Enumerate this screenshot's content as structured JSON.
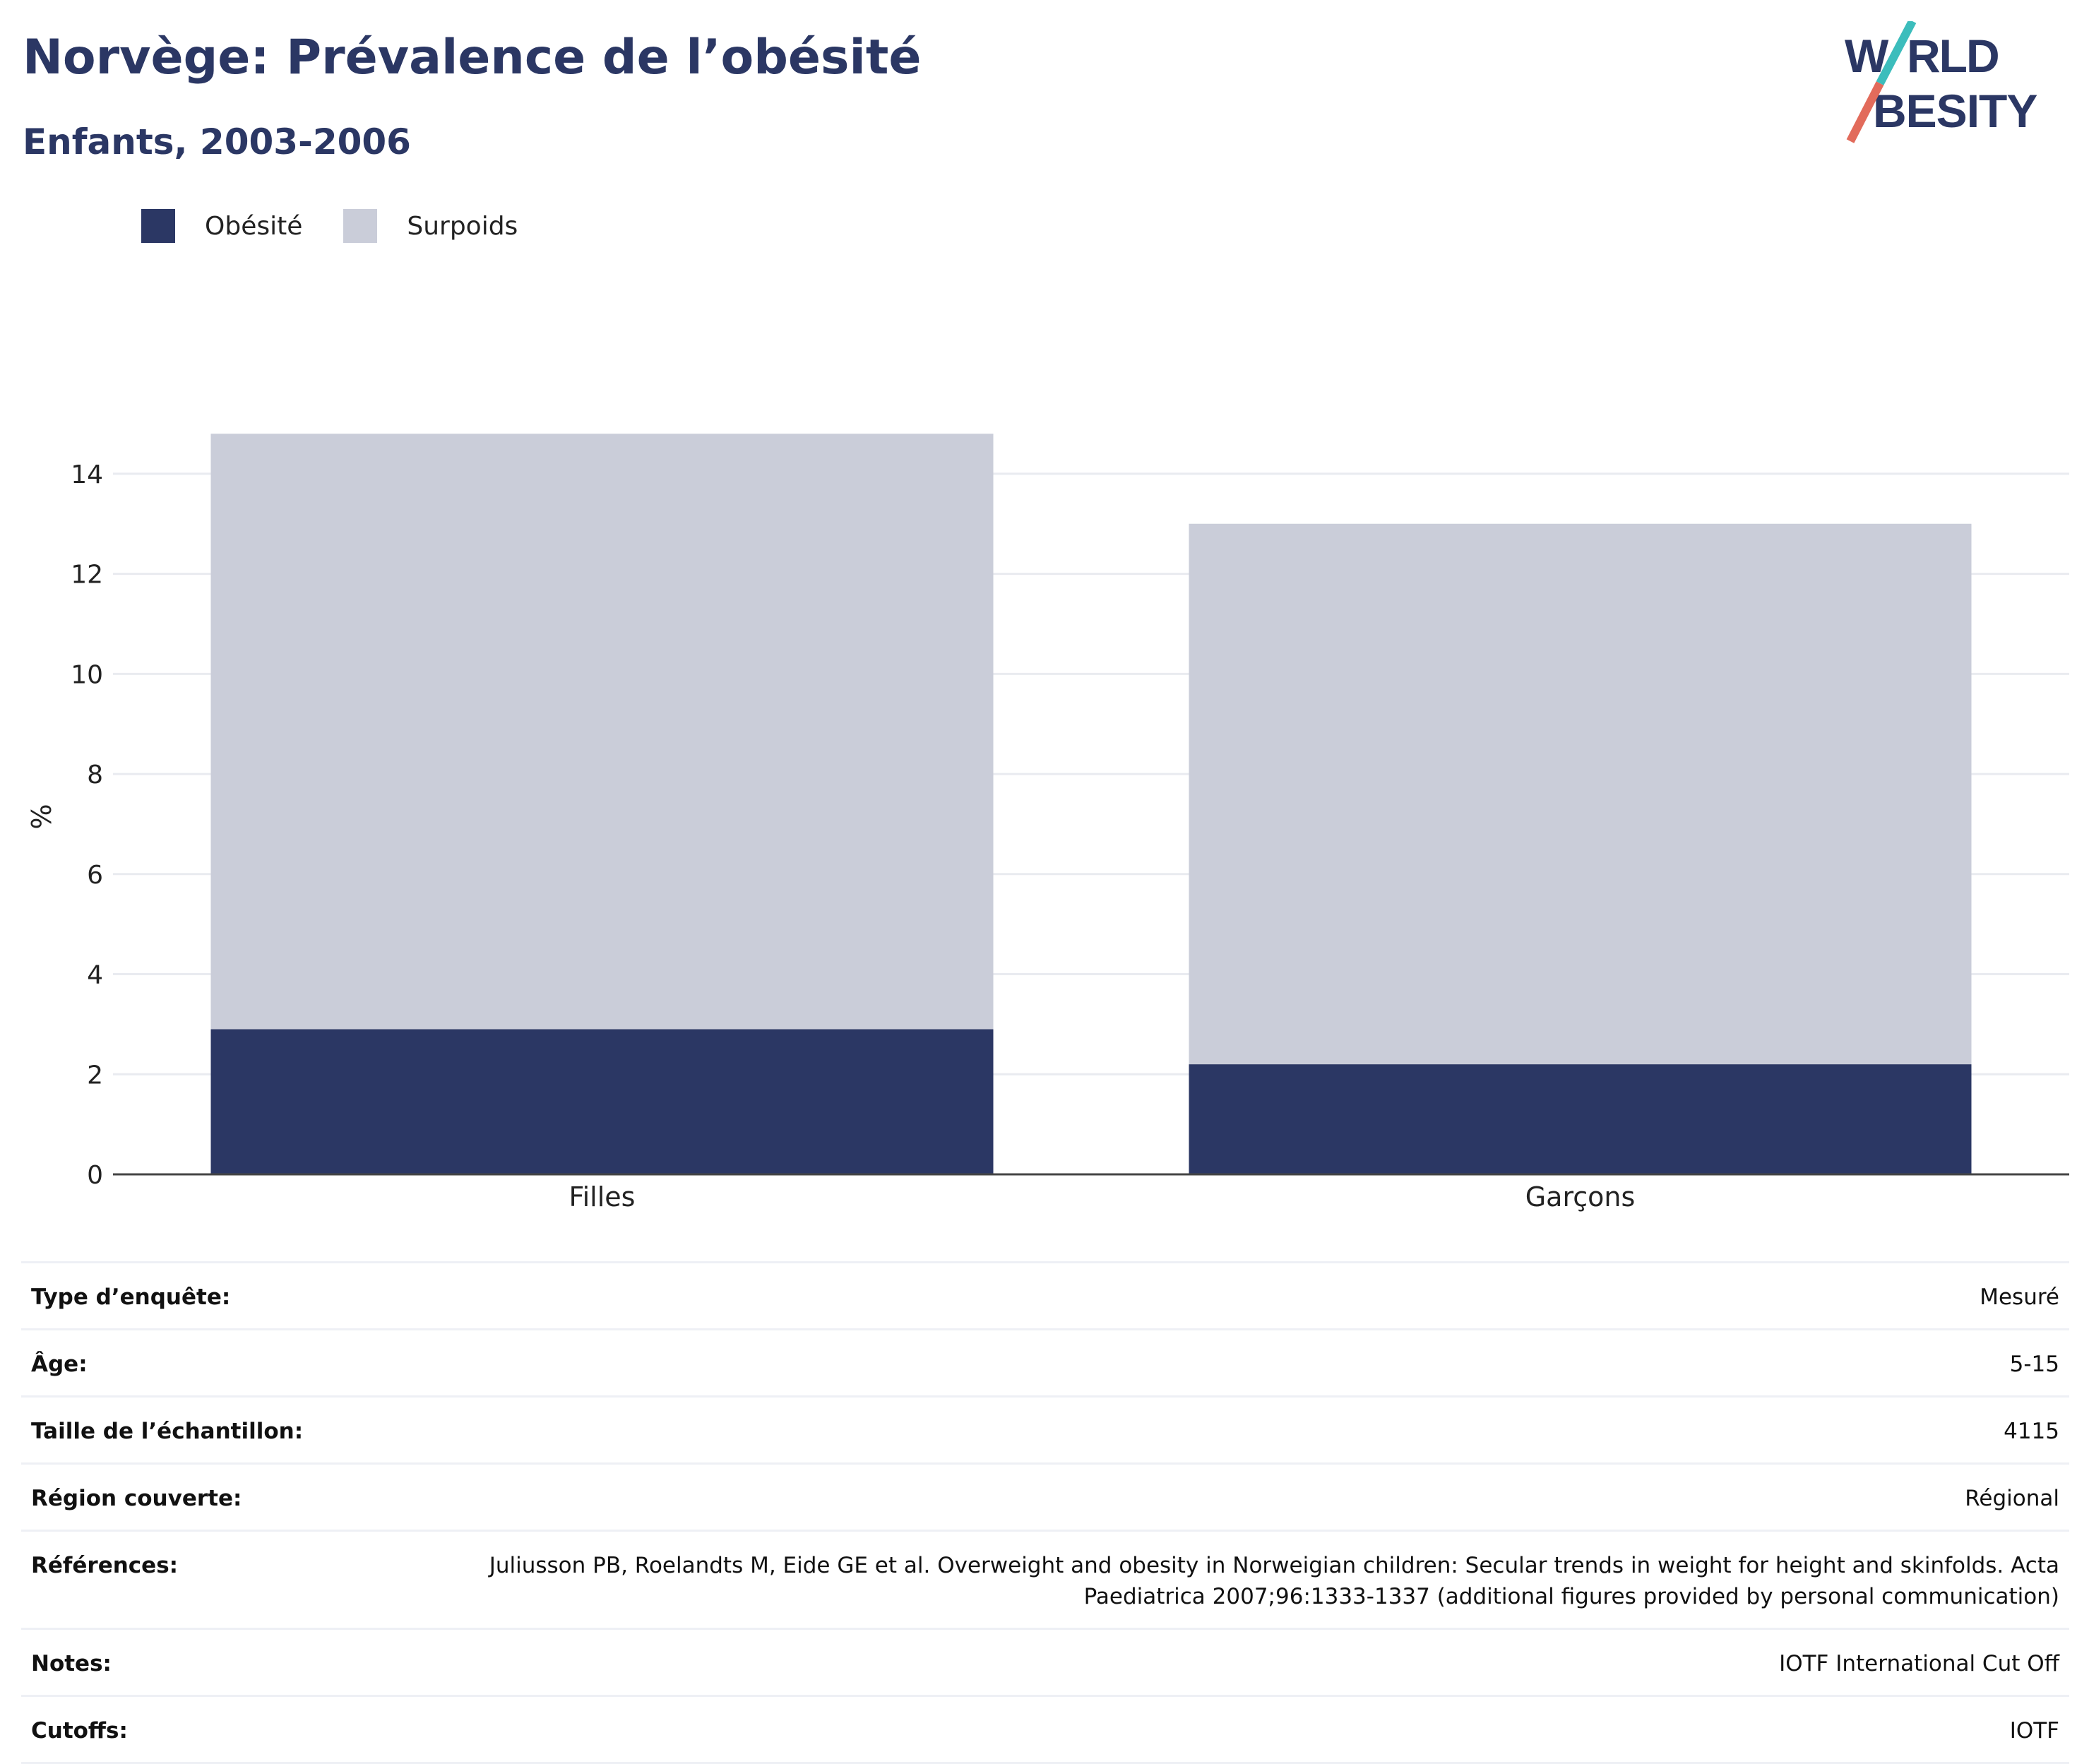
{
  "header": {
    "title": "Norvège: Prévalence de l’obésité",
    "subtitle": "Enfants, 2003-2006"
  },
  "logo": {
    "line1": "WORLD",
    "line2": "OBESITY"
  },
  "colors": {
    "obesity": "#2b3764",
    "overweight": "#cacdd9",
    "title": "#2b3764",
    "logo_teal": "#3cbdbc",
    "logo_coral": "#e26b5b"
  },
  "chart_data": {
    "type": "bar",
    "stacked": true,
    "categories": [
      "Filles",
      "Garçons"
    ],
    "series": [
      {
        "name": "Obésité",
        "values": [
          2.9,
          2.2
        ]
      },
      {
        "name": "Surpoids",
        "values": [
          11.9,
          10.8
        ]
      }
    ],
    "ylabel": "%",
    "ylim": [
      0,
      15
    ],
    "yticks": [
      0,
      2,
      4,
      6,
      8,
      10,
      12,
      14
    ],
    "grid": true,
    "legend": "top-left"
  },
  "info": [
    {
      "key": "Type d’enquête:",
      "value": "Mesuré"
    },
    {
      "key": "Âge:",
      "value": "5-15"
    },
    {
      "key": "Taille de l’échantillon:",
      "value": "4115"
    },
    {
      "key": "Région couverte:",
      "value": "Régional"
    },
    {
      "key": "Références:",
      "value": "Juliusson PB, Roelandts M, Eide GE et al. Overweight and obesity in Norweigian children: Secular trends in weight for height and skinfolds. Acta Paediatrica 2007;96:1333-1337 (additional figures provided by personal communication)"
    },
    {
      "key": "Notes:",
      "value": "IOTF International Cut Off"
    },
    {
      "key": "Cutoffs:",
      "value": "IOTF"
    }
  ]
}
